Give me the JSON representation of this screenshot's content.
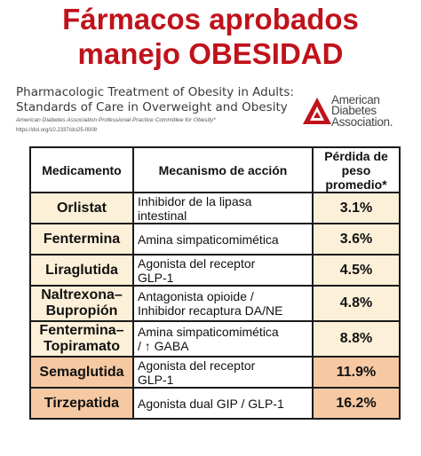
{
  "header": {
    "title_line1": "Fármacos aprobados",
    "title_line2": "manejo OBESIDAD"
  },
  "reference": {
    "title_line1": "Pharmacologic Treatment of Obesity in Adults:",
    "title_line2": "Standards of Care in Overweight and Obesity",
    "authors": "American Diabetes Association Professional Practice Committee for Obesity*",
    "doi": "https://doi.org/10.2337/dci25-0008"
  },
  "logo": {
    "line1": "American",
    "line2": "Diabetes",
    "line3": "Association.",
    "color": "#c0121b"
  },
  "table": {
    "headers": {
      "drug": "Medicamento",
      "mechanism": "Mecanismo de acción",
      "loss_line1": "Pérdida de",
      "loss_line2": "peso",
      "loss_line3": "promedio*"
    },
    "rows": [
      {
        "name1": "Orlistat",
        "name2": "",
        "mech1": "Inhibidor de la lipasa",
        "mech2": "intestinal",
        "loss": "3.1%"
      },
      {
        "name1": "Fentermina",
        "name2": "",
        "mech1": "Amina simpaticomimética",
        "mech2": "",
        "loss": "3.6%"
      },
      {
        "name1": "Liraglutida",
        "name2": "",
        "mech1": "Agonista del receptor",
        "mech2": "GLP-1",
        "loss": "4.5%"
      },
      {
        "name1": "Naltrexona–",
        "name2": "Bupropión",
        "mech1": "Antagonista opioide /",
        "mech2": "Inhibidor recaptura DA/NE",
        "loss": "4.8%"
      },
      {
        "name1": "Fentermina–",
        "name2": "Topiramato",
        "mech1": "Amina simpaticomimética",
        "mech2": "/ ↑ GABA",
        "loss": "8.8%"
      },
      {
        "name1": "Semaglutida",
        "name2": "",
        "mech1": "Agonista del receptor",
        "mech2": "GLP-1",
        "loss": "11.9%"
      },
      {
        "name1": "Tirzepatida",
        "name2": "",
        "mech1": "Agonista dual GIP / GLP-1",
        "mech2": "",
        "loss": "16.2%"
      }
    ],
    "colors": {
      "light_row": "#fdf0d8",
      "dark_row": "#f6c9a3",
      "title_red": "#c0121b"
    }
  }
}
